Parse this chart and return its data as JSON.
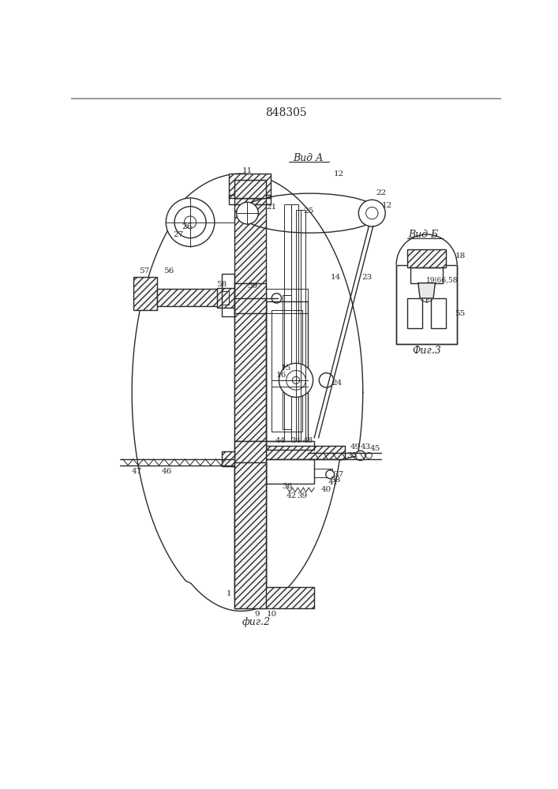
{
  "title": "848305",
  "bg_color": "#ffffff",
  "line_color": "#2a2a2a",
  "fig_width": 7.07,
  "fig_height": 10.0,
  "view_a": "Вид А",
  "view_b": "Вид Б",
  "fig2_caption": "фиг.2",
  "fig3_caption": "Фиг.3"
}
